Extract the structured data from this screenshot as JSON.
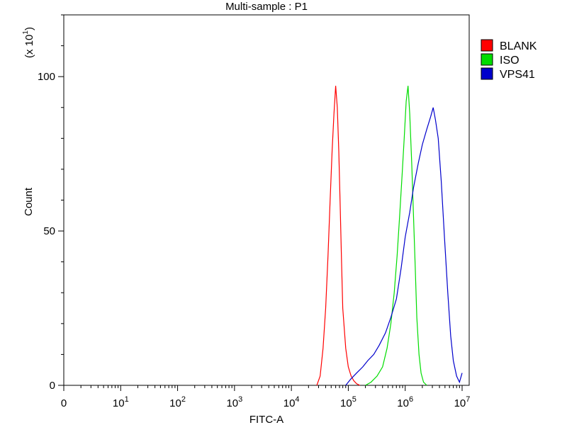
{
  "chart_data": {
    "type": "line",
    "title": "Multi-sample : P1",
    "xlabel": "FITC-A",
    "ylabel": "Count",
    "y_multiplier_label": "(x 10",
    "y_multiplier_exp": "1",
    "y_multiplier_close": ")",
    "x_scale": "log",
    "xlim": [
      1,
      10000000
    ],
    "ylim": [
      0,
      120
    ],
    "x_zero_label": "0",
    "x_ticks": [
      {
        "value": 10,
        "base": "10",
        "exp": "1"
      },
      {
        "value": 100,
        "base": "10",
        "exp": "2"
      },
      {
        "value": 1000,
        "base": "10",
        "exp": "3"
      },
      {
        "value": 10000,
        "base": "10",
        "exp": "4"
      },
      {
        "value": 100000,
        "base": "10",
        "exp": "5"
      },
      {
        "value": 1000000,
        "base": "10",
        "exp": "6"
      },
      {
        "value": 10000000,
        "base": "10",
        "exp": "7"
      }
    ],
    "y_ticks": [
      {
        "value": 0,
        "label": "0"
      },
      {
        "value": 50,
        "label": "50"
      },
      {
        "value": 100,
        "label": "100"
      }
    ],
    "legend_position": "right",
    "series": [
      {
        "name": "BLANK",
        "color": "#ff0000",
        "x": [
          28000,
          32000,
          36000,
          40000,
          44000,
          48000,
          52000,
          56000,
          60000,
          64000,
          68000,
          72000,
          76000,
          80000,
          90000,
          100000,
          112000,
          125000,
          140000,
          160000
        ],
        "y": [
          0,
          3,
          12,
          25,
          42,
          60,
          76,
          88,
          97,
          90,
          76,
          58,
          40,
          25,
          12,
          6,
          3,
          1.5,
          0.5,
          0
        ]
      },
      {
        "name": "ISO",
        "color": "#00dd00",
        "x": [
          200000,
          250000,
          320000,
          400000,
          480000,
          560000,
          640000,
          720000,
          800000,
          880000,
          960000,
          1040000,
          1120000,
          1200000,
          1300000,
          1400000,
          1500000,
          1600000,
          1750000,
          1900000,
          2100000,
          2400000
        ],
        "y": [
          0,
          1,
          3,
          6,
          12,
          20,
          30,
          42,
          55,
          68,
          80,
          92,
          97,
          88,
          72,
          55,
          38,
          22,
          10,
          4,
          1,
          0
        ]
      },
      {
        "name": "VPS41",
        "color": "#0000cc",
        "x": [
          90000,
          110000,
          140000,
          180000,
          220000,
          280000,
          350000,
          450000,
          560000,
          700000,
          850000,
          1000000,
          1200000,
          1400000,
          1700000,
          2000000,
          2400000,
          2800000,
          3100000,
          3400000,
          3800000,
          4300000,
          4900000,
          5600000,
          6300000,
          7000000,
          8000000,
          9000000,
          10000000
        ],
        "y": [
          0,
          2,
          4,
          6,
          8,
          10,
          13,
          17,
          22,
          28,
          38,
          48,
          56,
          64,
          72,
          78,
          83,
          87,
          90,
          86,
          80,
          66,
          48,
          30,
          16,
          8,
          3,
          1,
          4
        ]
      }
    ]
  }
}
